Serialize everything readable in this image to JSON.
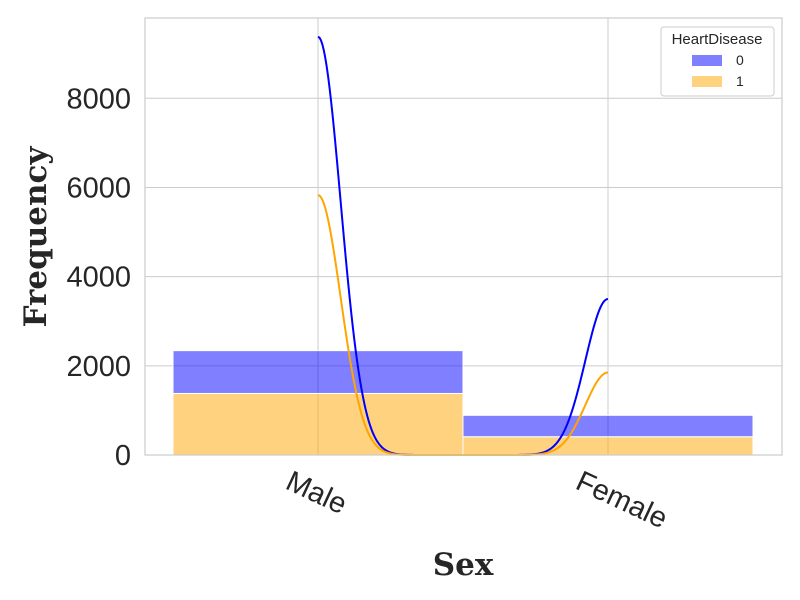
{
  "chart_data": {
    "type": "bar",
    "stacked": true,
    "categories": [
      "Male",
      "Female"
    ],
    "xlabel": "Sex",
    "ylabel": "Frequency",
    "ylim": [
      0,
      9800
    ],
    "yticks": [
      0,
      2000,
      4000,
      6000,
      8000
    ],
    "grid": true,
    "legend": {
      "title": "HeartDisease",
      "placement": "top-right"
    },
    "series": [
      {
        "name": "0",
        "color": "#0000ff",
        "values": [
          960,
          480
        ]
      },
      {
        "name": "1",
        "color": "#ffa500",
        "values": [
          1380,
          410
        ]
      }
    ],
    "kde": [
      {
        "series": "0",
        "peaks": [
          9380,
          3500
        ]
      },
      {
        "series": "1",
        "peaks": [
          5830,
          1850
        ]
      }
    ]
  }
}
